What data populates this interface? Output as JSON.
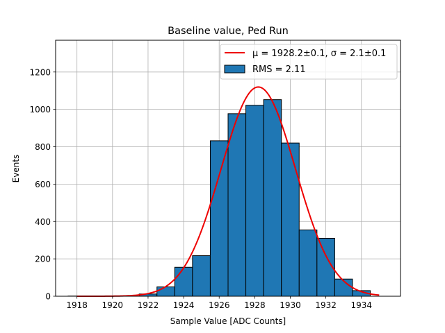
{
  "chart_data": {
    "type": "bar",
    "title": "Baseline value, Ped Run",
    "xlabel": "Sample Value [ADC Counts]",
    "ylabel": "Events",
    "xlim": [
      1916.8,
      1936.2
    ],
    "ylim": [
      0,
      1370
    ],
    "xticks": [
      1918,
      1920,
      1922,
      1924,
      1926,
      1928,
      1930,
      1932,
      1934
    ],
    "xtick_labels": [
      "1918",
      "1920",
      "1922",
      "1924",
      "1926",
      "1928",
      "1930",
      "1932",
      "1934"
    ],
    "yticks": [
      0,
      200,
      400,
      600,
      800,
      1000,
      1200
    ],
    "ytick_labels": [
      "0",
      "200",
      "400",
      "600",
      "800",
      "1000",
      "1200"
    ],
    "grid": true,
    "bin_width": 1,
    "bins": [
      1918,
      1919,
      1920,
      1921,
      1922,
      1923,
      1924,
      1925,
      1926,
      1927,
      1928,
      1929,
      1930,
      1931,
      1932,
      1933,
      1934
    ],
    "counts": [
      1,
      0,
      0,
      0,
      12,
      50,
      155,
      217,
      832,
      977,
      1022,
      1052,
      820,
      355,
      310,
      92,
      30
    ],
    "fit": {
      "type": "gaussian",
      "mu": 1928.2,
      "sigma": 2.1,
      "amplitude": 1120,
      "range": [
        1918,
        1935
      ],
      "color": "#ee0000"
    },
    "bar_color": "#1f77b4",
    "legend": {
      "position": "top-right",
      "entries": [
        {
          "label": "μ = 1928.2±0.1, σ = 2.1±0.1",
          "kind": "line"
        },
        {
          "label": "RMS = 2.11",
          "kind": "patch"
        }
      ]
    }
  }
}
